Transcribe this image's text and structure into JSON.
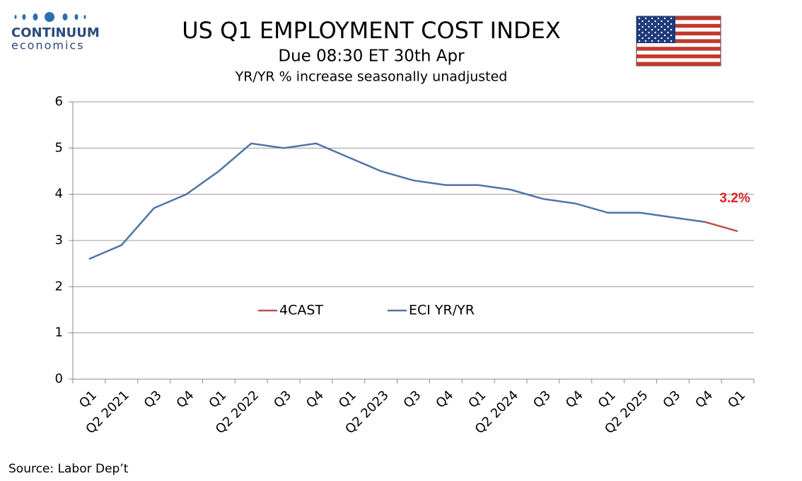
{
  "brand": {
    "name": "CONTINUUM",
    "tagline": "economics"
  },
  "source": "Source: Labor Dep’t",
  "chart_data": {
    "type": "line",
    "title": "US Q1 EMPLOYMENT COST INDEX",
    "subtitle": "Due 08:30 ET 30th Apr",
    "y_label": "YR/YR % increase seasonally unadjusted",
    "categories": [
      "Q1",
      "Q2 2021",
      "Q3",
      "Q4",
      "Q1",
      "Q2 2022",
      "Q3",
      "Q4",
      "Q1",
      "Q2 2023",
      "Q3",
      "Q4",
      "Q1",
      "Q2 2024",
      "Q3",
      "Q4",
      "Q1",
      "Q2 2025",
      "Q3",
      "Q4",
      "Q1"
    ],
    "series": [
      {
        "name": "4CAST",
        "color": "#c0504d",
        "values": [
          null,
          null,
          null,
          null,
          null,
          null,
          null,
          null,
          null,
          null,
          null,
          null,
          null,
          null,
          null,
          null,
          null,
          null,
          null,
          3.4,
          3.2
        ],
        "value_labels": [
          null,
          null,
          null,
          null,
          null,
          null,
          null,
          null,
          null,
          null,
          null,
          null,
          null,
          null,
          null,
          null,
          null,
          null,
          null,
          null,
          "3.2%"
        ],
        "label_color": "#dd2222"
      },
      {
        "name": "ECI YR/YR",
        "color": "#4f74a8",
        "values": [
          2.6,
          2.9,
          3.7,
          4.0,
          4.5,
          5.1,
          5.0,
          5.1,
          4.8,
          4.5,
          4.3,
          4.2,
          4.2,
          4.1,
          3.9,
          3.8,
          3.6,
          3.6,
          3.5,
          3.4,
          null
        ]
      }
    ],
    "ylim": [
      0,
      6
    ],
    "yticks": [
      0,
      1,
      2,
      3,
      4,
      5,
      6
    ],
    "grid": true,
    "legend_position": "center"
  }
}
